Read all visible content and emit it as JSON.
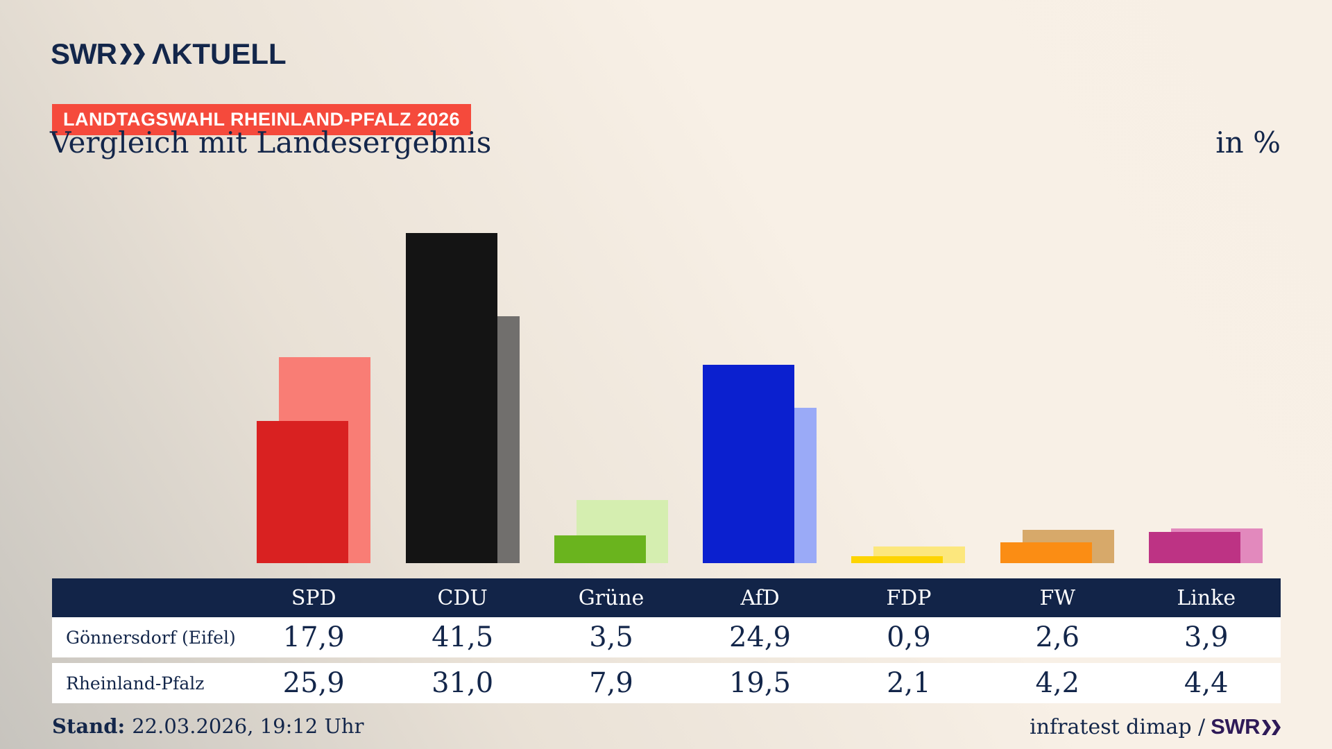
{
  "header": {
    "logo_swr": "SWR",
    "logo_aktuell": "ΛKTUELL",
    "badge": "LANDTAGSWAHL RHEINLAND-PFALZ 2026",
    "title": "Vergleich mit Landesergebnis",
    "unit": "in %"
  },
  "chart_data": {
    "type": "bar",
    "title": "Vergleich mit Landesergebnis",
    "unit": "in %",
    "grid": false,
    "legend": false,
    "ylim": [
      0,
      43
    ],
    "categories": [
      "SPD",
      "CDU",
      "Grüne",
      "AfD",
      "FDP",
      "FW",
      "Linke"
    ],
    "series": [
      {
        "name": "Gönnersdorf (Eifel)",
        "role": "front",
        "values": [
          17.9,
          41.5,
          3.5,
          24.9,
          0.9,
          2.6,
          3.9
        ],
        "display": [
          "17,9",
          "41,5",
          "3,5",
          "24,9",
          "0,9",
          "2,6",
          "3,9"
        ],
        "colors": [
          "#d92121",
          "#141414",
          "#6ab41e",
          "#0b20cf",
          "#fdd402",
          "#fb8d14",
          "#bd3384"
        ]
      },
      {
        "name": "Rheinland-Pfalz",
        "role": "back",
        "values": [
          25.9,
          31.0,
          7.9,
          19.5,
          2.1,
          4.2,
          4.4
        ],
        "display": [
          "25,9",
          "31,0",
          "7,9",
          "19,5",
          "2,1",
          "4,2",
          "4,4"
        ],
        "colors": [
          "#f97d75",
          "#716f6d",
          "#d5eeb0",
          "#9aaaf7",
          "#fce77d",
          "#d7a96a",
          "#e289bd"
        ]
      }
    ]
  },
  "footer": {
    "stand_label": "Stand:",
    "stand_value": "22.03.2026, 19:12 Uhr",
    "credit": "infratest dimap /",
    "credit_logo": "SWR"
  },
  "colors": {
    "navy": "#13264a",
    "badge_red": "#f54a3c",
    "table_header": "#122448",
    "credit_purple": "#2e1a58"
  }
}
